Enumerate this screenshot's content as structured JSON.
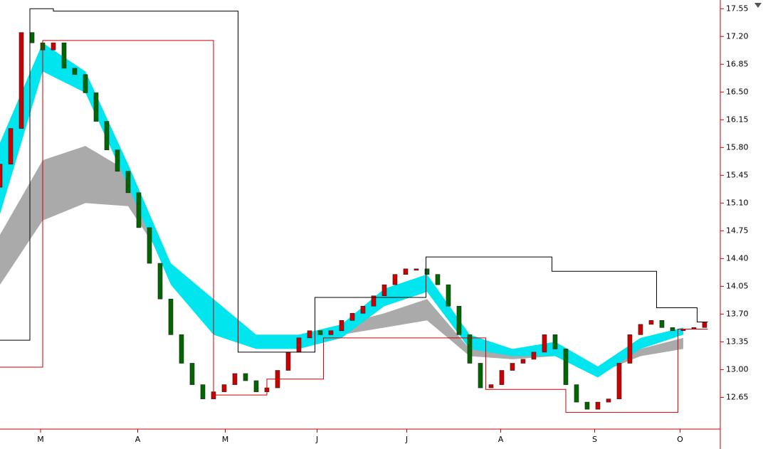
{
  "chart_data": {
    "type": "floating-bar",
    "ylim": [
      12.25,
      17.66
    ],
    "yticks": [
      17.55,
      {
        "value": 17.2,
        "label": "17.20"
      },
      16.85,
      {
        "value": 16.5,
        "label": "16.50"
      },
      16.15,
      {
        "value": 15.8,
        "label": "15.80"
      },
      15.45,
      {
        "value": 15.1,
        "label": "15.10"
      },
      14.75,
      {
        "value": 14.4,
        "label": "14.40"
      },
      14.05,
      {
        "value": 13.7,
        "label": "13.70"
      },
      13.35,
      {
        "value": 13.0,
        "label": "13.00"
      },
      12.65
    ],
    "xlim": [
      0,
      67.47
    ],
    "xticks": [
      {
        "value": 3.8,
        "label": "M"
      },
      {
        "value": 12.9,
        "label": "A"
      },
      {
        "value": 21.1,
        "label": "M"
      },
      {
        "value": 29.7,
        "label": "J"
      },
      {
        "value": 38.1,
        "label": "J"
      },
      {
        "value": 46.9,
        "label": "A"
      },
      {
        "value": 55.7,
        "label": "S"
      },
      {
        "value": 63.7,
        "label": "O"
      }
    ],
    "up_color": "#cc0000",
    "down_color": "#006600",
    "open": [
      15.3,
      15.59,
      16.04,
      17.25,
      17.12,
      17.03,
      17.12,
      16.8,
      16.72,
      16.49,
      16.13,
      15.77,
      15.5,
      15.23,
      14.79,
      14.34,
      13.89,
      13.44,
      13.08,
      12.81,
      12.63,
      12.72,
      12.81,
      12.95,
      12.86,
      12.72,
      12.77,
      12.99,
      13.22,
      13.4,
      13.49,
      13.44,
      13.49,
      13.62,
      13.71,
      13.8,
      13.93,
      14.07,
      14.2,
      14.27,
      14.27,
      14.2,
      14.07,
      13.8,
      13.44,
      13.08,
      12.77,
      12.81,
      12.99,
      13.08,
      13.13,
      13.22,
      13.44,
      13.26,
      12.81,
      12.59,
      12.5,
      12.59,
      12.63,
      13.08,
      13.44,
      13.57,
      13.62,
      13.53,
      13.49,
      13.51,
      13.53
    ],
    "close": [
      15.59,
      16.04,
      17.25,
      17.12,
      17.03,
      17.12,
      16.8,
      16.72,
      16.49,
      16.13,
      15.77,
      15.5,
      15.23,
      14.79,
      14.34,
      13.89,
      13.44,
      13.08,
      12.81,
      12.63,
      12.72,
      12.81,
      12.95,
      12.86,
      12.72,
      12.77,
      12.99,
      13.22,
      13.4,
      13.49,
      13.44,
      13.49,
      13.62,
      13.71,
      13.8,
      13.93,
      14.07,
      14.2,
      14.27,
      14.27,
      14.2,
      14.07,
      13.8,
      13.44,
      13.08,
      12.77,
      12.81,
      12.99,
      13.08,
      13.13,
      13.22,
      13.44,
      13.26,
      12.81,
      12.59,
      12.5,
      12.59,
      12.63,
      13.08,
      13.44,
      13.57,
      13.62,
      13.53,
      13.49,
      13.51,
      13.53,
      13.6
    ],
    "bands": [
      {
        "color": "#aaaaaa",
        "x": [
          0,
          4,
          8,
          12,
          16,
          20,
          24,
          28,
          32,
          36,
          40,
          44,
          48,
          52,
          56,
          60,
          64
        ],
        "upper": [
          14.7,
          15.64,
          15.82,
          15.5,
          14.34,
          13.57,
          13.44,
          13.44,
          13.57,
          13.71,
          13.89,
          13.26,
          13.22,
          13.26,
          13.04,
          13.26,
          13.4
        ],
        "lower": [
          14.07,
          14.88,
          15.1,
          15.06,
          14.25,
          13.44,
          13.26,
          13.31,
          13.44,
          13.53,
          13.62,
          13.17,
          13.13,
          13.17,
          12.95,
          13.17,
          13.26
        ]
      },
      {
        "color": "#00e5ee",
        "x": [
          0,
          4,
          8,
          12,
          16,
          20,
          24,
          28,
          32,
          36,
          40,
          44,
          48,
          52,
          56,
          60,
          64
        ],
        "upper": [
          15.86,
          17.12,
          16.76,
          15.59,
          14.34,
          13.89,
          13.44,
          13.44,
          13.57,
          14.02,
          14.2,
          13.44,
          13.26,
          13.35,
          13.04,
          13.4,
          13.53
        ],
        "lower": [
          14.96,
          16.76,
          16.49,
          15.32,
          14.07,
          13.44,
          13.26,
          13.26,
          13.4,
          13.8,
          13.98,
          13.26,
          13.17,
          13.17,
          12.9,
          13.26,
          13.44
        ]
      }
    ],
    "steps": [
      {
        "color": "#000000",
        "x": [
          0,
          2.8,
          5,
          22.3,
          29.5,
          39.9,
          51.7,
          61.5,
          65.3,
          66.3
        ],
        "values": [
          13.37,
          17.55,
          17.52,
          13.22,
          13.91,
          14.42,
          14.24,
          13.78,
          13.6,
          13.6
        ]
      },
      {
        "color": "#cc0000",
        "x": [
          0,
          4,
          20,
          25,
          30.3,
          45.5,
          53,
          63.5,
          66.3
        ],
        "values": [
          13.03,
          17.15,
          12.68,
          12.88,
          13.4,
          12.75,
          12.46,
          13.51,
          13.51
        ]
      }
    ]
  }
}
